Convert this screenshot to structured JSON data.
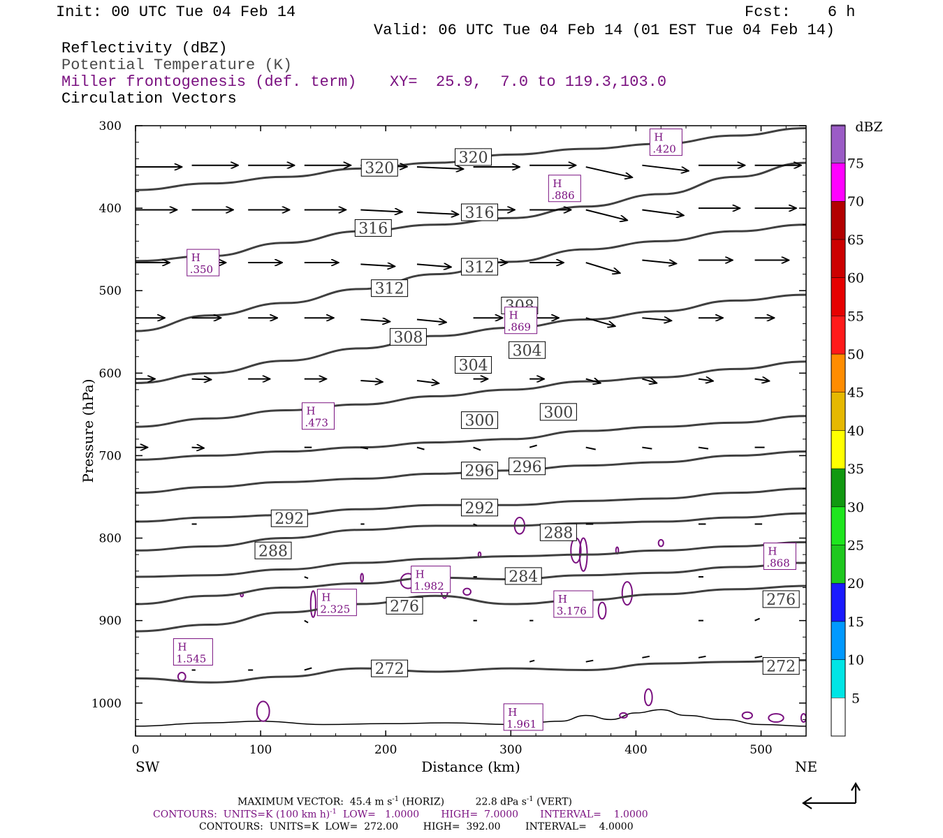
{
  "header": {
    "init": "Init: 00 UTC Tue 04 Feb 14",
    "fcst": "Fcst:    6 h",
    "valid": "Valid: 06 UTC Tue 04 Feb 14 (01 EST Tue 04 Feb 14)",
    "fields": [
      {
        "label": "Reflectivity (dBZ)",
        "color": "#000000"
      },
      {
        "label": "Potential Temperature (K)",
        "color": "#4a4a4a"
      },
      {
        "label": "Miller frontogenesis (def. term)",
        "color": "#7a1180"
      },
      {
        "label": "Circulation Vectors",
        "color": "#000000"
      }
    ],
    "xy": "XY=  25.9,  7.0 to 119.3,103.0"
  },
  "chart_data": {
    "type": "line",
    "xlabel": "Distance (km)",
    "ylabel": "Pressure (hPa)",
    "xlim": [
      0,
      536
    ],
    "ylim": [
      1040,
      300
    ],
    "x_ticks": [
      0,
      100,
      200,
      300,
      400,
      500
    ],
    "y_ticks": [
      300,
      400,
      500,
      600,
      700,
      800,
      900,
      1000
    ],
    "end_labels": {
      "left": "SW",
      "right": "NE"
    },
    "theta_series": [
      {
        "name": "272",
        "x": [
          0,
          60,
          120,
          180,
          240,
          300,
          360,
          420,
          480,
          536
        ],
        "values": [
          970,
          975,
          968,
          958,
          962,
          958,
          960,
          952,
          950,
          948
        ]
      },
      {
        "name": "276",
        "x": [
          0,
          60,
          120,
          180,
          240,
          300,
          360,
          420,
          480,
          536
        ],
        "values": [
          913,
          905,
          890,
          880,
          870,
          880,
          875,
          868,
          862,
          858
        ]
      },
      {
        "name": "280",
        "x": [
          0,
          60,
          120,
          180,
          240,
          300,
          360,
          420,
          480,
          536
        ],
        "values": [
          880,
          870,
          860,
          855,
          848,
          850,
          845,
          842,
          835,
          830
        ]
      },
      {
        "name": "284",
        "x": [
          0,
          60,
          120,
          180,
          240,
          300,
          360,
          420,
          480,
          536
        ],
        "values": [
          847,
          845,
          838,
          830,
          825,
          822,
          820,
          815,
          810,
          805
        ]
      },
      {
        "name": "288",
        "x": [
          0,
          60,
          120,
          180,
          240,
          300,
          360,
          420,
          480,
          536
        ],
        "values": [
          815,
          810,
          800,
          790,
          785,
          785,
          782,
          780,
          775,
          770
        ]
      },
      {
        "name": "292",
        "x": [
          0,
          60,
          120,
          180,
          240,
          300,
          360,
          420,
          480,
          536
        ],
        "values": [
          780,
          775,
          772,
          765,
          760,
          760,
          755,
          752,
          745,
          740
        ]
      },
      {
        "name": "296",
        "x": [
          0,
          60,
          120,
          180,
          240,
          300,
          360,
          420,
          480,
          536
        ],
        "values": [
          745,
          738,
          732,
          728,
          722,
          718,
          712,
          708,
          700,
          695
        ]
      },
      {
        "name": "300",
        "x": [
          0,
          60,
          120,
          180,
          240,
          300,
          360,
          420,
          480,
          536
        ],
        "values": [
          705,
          700,
          695,
          690,
          684,
          680,
          670,
          665,
          660,
          652
        ]
      },
      {
        "name": "304",
        "x": [
          0,
          60,
          120,
          180,
          240,
          300,
          360,
          420,
          480,
          536
        ],
        "values": [
          665,
          655,
          645,
          638,
          628,
          620,
          610,
          605,
          595,
          586
        ]
      },
      {
        "name": "308",
        "x": [
          0,
          60,
          120,
          180,
          240,
          300,
          360,
          420,
          480,
          536
        ],
        "values": [
          612,
          600,
          585,
          570,
          555,
          545,
          535,
          525,
          512,
          505
        ]
      },
      {
        "name": "312",
        "x": [
          0,
          60,
          120,
          180,
          240,
          300,
          360,
          420,
          480,
          536
        ],
        "values": [
          549,
          530,
          515,
          498,
          480,
          465,
          450,
          440,
          428,
          420
        ]
      },
      {
        "name": "316",
        "x": [
          0,
          60,
          120,
          180,
          240,
          300,
          360,
          420,
          480,
          536
        ],
        "values": [
          464,
          458,
          442,
          428,
          420,
          412,
          398,
          383,
          362,
          345
        ]
      },
      {
        "name": "320",
        "x": [
          0,
          60,
          120,
          180,
          240,
          300,
          360,
          420,
          480,
          536
        ],
        "values": [
          378,
          370,
          362,
          352,
          345,
          335,
          328,
          322,
          312,
          303
        ]
      }
    ],
    "theta_labels": [
      {
        "text": "320",
        "x": 195,
        "p": 351
      },
      {
        "text": "320",
        "x": 270,
        "p": 338
      },
      {
        "text": "316",
        "x": 190,
        "p": 424
      },
      {
        "text": "316",
        "x": 275,
        "p": 405
      },
      {
        "text": "312",
        "x": 203,
        "p": 497
      },
      {
        "text": "312",
        "x": 275,
        "p": 471
      },
      {
        "text": "308",
        "x": 218,
        "p": 556
      },
      {
        "text": "308",
        "x": 307,
        "p": 518
      },
      {
        "text": "304",
        "x": 270,
        "p": 590
      },
      {
        "text": "304",
        "x": 313,
        "p": 572
      },
      {
        "text": "300",
        "x": 275,
        "p": 657
      },
      {
        "text": "300",
        "x": 338,
        "p": 647
      },
      {
        "text": "296",
        "x": 275,
        "p": 718
      },
      {
        "text": "296",
        "x": 313,
        "p": 713
      },
      {
        "text": "292",
        "x": 123,
        "p": 776
      },
      {
        "text": "292",
        "x": 275,
        "p": 763
      },
      {
        "text": "288",
        "x": 110,
        "p": 815
      },
      {
        "text": "288",
        "x": 338,
        "p": 793
      },
      {
        "text": "284",
        "x": 310,
        "p": 846
      },
      {
        "text": "276",
        "x": 215,
        "p": 882
      },
      {
        "text": "276",
        "x": 516,
        "p": 874
      },
      {
        "text": "272",
        "x": 203,
        "p": 958
      },
      {
        "text": "272",
        "x": 516,
        "p": 955
      }
    ],
    "frontogenesis_highs": [
      {
        "value": ".420",
        "x": 424,
        "p": 320
      },
      {
        "value": ".886",
        "x": 343,
        "p": 376
      },
      {
        "value": ".350",
        "x": 54,
        "p": 466
      },
      {
        "value": ".869",
        "x": 308,
        "p": 536
      },
      {
        "value": ".473",
        "x": 146,
        "p": 652
      },
      {
        "value": ".868",
        "x": 515,
        "p": 822
      },
      {
        "value": "1.982",
        "x": 236,
        "p": 850
      },
      {
        "value": "2.325",
        "x": 161,
        "p": 878
      },
      {
        "value": "3.176",
        "x": 350,
        "p": 880
      },
      {
        "value": "1.545",
        "x": 46,
        "p": 938
      },
      {
        "value": "1.961",
        "x": 310,
        "p": 1017
      }
    ],
    "vectors": [
      {
        "x": 0,
        "p": 350,
        "u": 38,
        "w": 0
      },
      {
        "x": 45,
        "p": 348,
        "u": 38,
        "w": 0
      },
      {
        "x": 90,
        "p": 348,
        "u": 38,
        "w": 0
      },
      {
        "x": 135,
        "p": 348,
        "u": 38,
        "w": 0
      },
      {
        "x": 180,
        "p": 348,
        "u": 38,
        "w": -2
      },
      {
        "x": 225,
        "p": 350,
        "u": 38,
        "w": -3
      },
      {
        "x": 270,
        "p": 350,
        "u": 38,
        "w": 0
      },
      {
        "x": 315,
        "p": 348,
        "u": 38,
        "w": 0
      },
      {
        "x": 360,
        "p": 350,
        "u": 38,
        "w": -15
      },
      {
        "x": 405,
        "p": 348,
        "u": 38,
        "w": -8
      },
      {
        "x": 450,
        "p": 348,
        "u": 38,
        "w": 0
      },
      {
        "x": 495,
        "p": 348,
        "u": 38,
        "w": 0
      },
      {
        "x": 0,
        "p": 402,
        "u": 34,
        "w": 0
      },
      {
        "x": 45,
        "p": 402,
        "u": 34,
        "w": 0
      },
      {
        "x": 90,
        "p": 402,
        "u": 34,
        "w": 0
      },
      {
        "x": 135,
        "p": 402,
        "u": 34,
        "w": 0
      },
      {
        "x": 180,
        "p": 402,
        "u": 34,
        "w": -3
      },
      {
        "x": 225,
        "p": 405,
        "u": 34,
        "w": -3
      },
      {
        "x": 270,
        "p": 402,
        "u": 34,
        "w": 0
      },
      {
        "x": 315,
        "p": 402,
        "u": 34,
        "w": 0
      },
      {
        "x": 360,
        "p": 402,
        "u": 34,
        "w": -15
      },
      {
        "x": 405,
        "p": 402,
        "u": 34,
        "w": -8
      },
      {
        "x": 450,
        "p": 400,
        "u": 34,
        "w": 0
      },
      {
        "x": 495,
        "p": 400,
        "u": 34,
        "w": 0
      },
      {
        "x": 0,
        "p": 466,
        "u": 28,
        "w": 0
      },
      {
        "x": 45,
        "p": 466,
        "u": 28,
        "w": 0
      },
      {
        "x": 90,
        "p": 466,
        "u": 28,
        "w": 0
      },
      {
        "x": 135,
        "p": 466,
        "u": 28,
        "w": 0
      },
      {
        "x": 180,
        "p": 468,
        "u": 28,
        "w": -3
      },
      {
        "x": 225,
        "p": 468,
        "u": 28,
        "w": -4
      },
      {
        "x": 270,
        "p": 466,
        "u": 28,
        "w": 0
      },
      {
        "x": 315,
        "p": 466,
        "u": 28,
        "w": 0
      },
      {
        "x": 360,
        "p": 466,
        "u": 28,
        "w": -15
      },
      {
        "x": 405,
        "p": 463,
        "u": 28,
        "w": -5
      },
      {
        "x": 450,
        "p": 463,
        "u": 28,
        "w": 0
      },
      {
        "x": 495,
        "p": 463,
        "u": 28,
        "w": 0
      },
      {
        "x": 0,
        "p": 533,
        "u": 24,
        "w": 0
      },
      {
        "x": 45,
        "p": 533,
        "u": 24,
        "w": 0
      },
      {
        "x": 90,
        "p": 533,
        "u": 24,
        "w": 0
      },
      {
        "x": 135,
        "p": 533,
        "u": 24,
        "w": 0
      },
      {
        "x": 180,
        "p": 535,
        "u": 24,
        "w": -3
      },
      {
        "x": 225,
        "p": 535,
        "u": 24,
        "w": -4
      },
      {
        "x": 270,
        "p": 533,
        "u": 24,
        "w": 0
      },
      {
        "x": 315,
        "p": 533,
        "u": 24,
        "w": 0
      },
      {
        "x": 360,
        "p": 533,
        "u": 24,
        "w": -12
      },
      {
        "x": 405,
        "p": 533,
        "u": 24,
        "w": -4
      },
      {
        "x": 450,
        "p": 533,
        "u": 20,
        "w": 0
      },
      {
        "x": 495,
        "p": 533,
        "u": 16,
        "w": 0
      },
      {
        "x": 0,
        "p": 607,
        "u": 16,
        "w": 0
      },
      {
        "x": 45,
        "p": 607,
        "u": 16,
        "w": -1
      },
      {
        "x": 90,
        "p": 607,
        "u": 18,
        "w": 0
      },
      {
        "x": 135,
        "p": 607,
        "u": 18,
        "w": 0
      },
      {
        "x": 180,
        "p": 609,
        "u": 18,
        "w": -2
      },
      {
        "x": 225,
        "p": 609,
        "u": 18,
        "w": -4
      },
      {
        "x": 270,
        "p": 607,
        "u": 12,
        "w": 0
      },
      {
        "x": 315,
        "p": 607,
        "u": 12,
        "w": 0
      },
      {
        "x": 360,
        "p": 607,
        "u": 12,
        "w": -6
      },
      {
        "x": 405,
        "p": 607,
        "u": 12,
        "w": -6
      },
      {
        "x": 450,
        "p": 607,
        "u": 12,
        "w": -3
      },
      {
        "x": 495,
        "p": 607,
        "u": 12,
        "w": -3
      },
      {
        "x": 0,
        "p": 690,
        "u": 10,
        "w": 0
      },
      {
        "x": 45,
        "p": 690,
        "u": 10,
        "w": -1
      },
      {
        "x": 135,
        "p": 690,
        "u": 6,
        "w": 0
      },
      {
        "x": 180,
        "p": 690,
        "u": 6,
        "w": -2
      },
      {
        "x": 225,
        "p": 690,
        "u": 6,
        "w": -3
      },
      {
        "x": 270,
        "p": 690,
        "u": 6,
        "w": -4
      },
      {
        "x": 315,
        "p": 690,
        "u": 6,
        "w": 3
      },
      {
        "x": 360,
        "p": 690,
        "u": 8,
        "w": -3
      },
      {
        "x": 405,
        "p": 690,
        "u": 8,
        "w": -2
      },
      {
        "x": 450,
        "p": 690,
        "u": 8,
        "w": -2
      },
      {
        "x": 495,
        "p": 690,
        "u": 8,
        "w": 0
      },
      {
        "x": 45,
        "p": 783,
        "u": 4,
        "w": 0
      },
      {
        "x": 180,
        "p": 783,
        "u": 3,
        "w": 0
      },
      {
        "x": 270,
        "p": 783,
        "u": 3,
        "w": -2
      },
      {
        "x": 360,
        "p": 783,
        "u": 6,
        "w": 0
      },
      {
        "x": 450,
        "p": 783,
        "u": 6,
        "w": 0
      },
      {
        "x": 495,
        "p": 783,
        "u": 6,
        "w": 0
      },
      {
        "x": 135,
        "p": 847,
        "u": 3,
        "w": -2
      },
      {
        "x": 270,
        "p": 847,
        "u": 3,
        "w": 0
      },
      {
        "x": 450,
        "p": 847,
        "u": 4,
        "w": 0
      },
      {
        "x": 135,
        "p": 900,
        "u": 3,
        "w": -3
      },
      {
        "x": 270,
        "p": 900,
        "u": 3,
        "w": 0
      },
      {
        "x": 315,
        "p": 900,
        "u": 3,
        "w": 0
      },
      {
        "x": 450,
        "p": 900,
        "u": 4,
        "w": 0
      },
      {
        "x": 495,
        "p": 900,
        "u": 4,
        "w": 3
      },
      {
        "x": 45,
        "p": 960,
        "u": 3,
        "w": 0
      },
      {
        "x": 90,
        "p": 960,
        "u": 4,
        "w": 0
      },
      {
        "x": 135,
        "p": 960,
        "u": 6,
        "w": 3
      },
      {
        "x": 315,
        "p": 950,
        "u": 4,
        "w": 2
      },
      {
        "x": 360,
        "p": 950,
        "u": 6,
        "w": 2
      },
      {
        "x": 405,
        "p": 945,
        "u": 6,
        "w": 2
      },
      {
        "x": 450,
        "p": 945,
        "u": 6,
        "w": 2
      },
      {
        "x": 495,
        "p": 945,
        "u": 6,
        "w": 2
      }
    ],
    "contour_blobs": [
      {
        "x": 307,
        "p": 785,
        "rx": 4,
        "rp": 10
      },
      {
        "x": 352,
        "p": 815,
        "rx": 4,
        "rp": 15
      },
      {
        "x": 358,
        "p": 820,
        "rx": 3,
        "rp": 20
      },
      {
        "x": 420,
        "p": 806,
        "rx": 2,
        "rp": 4
      },
      {
        "x": 385,
        "p": 815,
        "rx": 1,
        "rp": 4
      },
      {
        "x": 275,
        "p": 820,
        "rx": 1,
        "rp": 3
      },
      {
        "x": 218,
        "p": 852,
        "rx": 6,
        "rp": 9
      },
      {
        "x": 247,
        "p": 858,
        "rx": 3,
        "rp": 15
      },
      {
        "x": 265,
        "p": 865,
        "rx": 3,
        "rp": 4
      },
      {
        "x": 181,
        "p": 848,
        "rx": 1,
        "rp": 5
      },
      {
        "x": 142,
        "p": 880,
        "rx": 2,
        "rp": 16
      },
      {
        "x": 393,
        "p": 867,
        "rx": 4,
        "rp": 14
      },
      {
        "x": 373,
        "p": 888,
        "rx": 3,
        "rp": 10
      },
      {
        "x": 85,
        "p": 869,
        "rx": 1,
        "rp": 2
      },
      {
        "x": 37,
        "p": 968,
        "rx": 3,
        "rp": 5
      },
      {
        "x": 102,
        "p": 1010,
        "rx": 5,
        "rp": 12
      },
      {
        "x": 410,
        "p": 993,
        "rx": 3,
        "rp": 10
      },
      {
        "x": 489,
        "p": 1015,
        "rx": 4,
        "rp": 4
      },
      {
        "x": 512,
        "p": 1018,
        "rx": 6,
        "rp": 5
      },
      {
        "x": 534,
        "p": 1018,
        "rx": 2,
        "rp": 5
      },
      {
        "x": 390,
        "p": 1015,
        "rx": 3,
        "rp": 3
      }
    ],
    "terrain": {
      "x": [
        0,
        60,
        100,
        150,
        200,
        250,
        300,
        340,
        360,
        380,
        400,
        420,
        440,
        470,
        500,
        536
      ],
      "values": [
        1028,
        1024,
        1022,
        1026,
        1025,
        1024,
        1026,
        1022,
        1015,
        1020,
        1012,
        1008,
        1015,
        1020,
        1026,
        1028
      ]
    }
  },
  "colorbar": {
    "title": "dBZ",
    "labels": [
      "5",
      "10",
      "15",
      "20",
      "25",
      "30",
      "35",
      "40",
      "45",
      "50",
      "55",
      "60",
      "65",
      "70",
      "75"
    ],
    "colors": [
      "#00e5e5",
      "#0099ff",
      "#1a1aff",
      "#1ec81e",
      "#1ee61e",
      "#119911",
      "#ffff00",
      "#e6b800",
      "#ff8c00",
      "#ff1a1a",
      "#e60000",
      "#cc0000",
      "#b30000",
      "#ff00ff",
      "#9b5cc6"
    ]
  },
  "footer": {
    "max_vector": "MAXIMUM VECTOR:  45.4 m s",
    "max_vector_horiz": "(HORIZ)",
    "max_vector_vert": "22.8 dPa s",
    "max_vector_vert_unit": "(VERT)",
    "sup": "-1",
    "contours1": "CONTOURS:  UNITS=K (100 km h)",
    "contours1_rest": "LOW=   1.0000       HIGH=  7.0000       INTERVAL=    1.0000",
    "contours2": "CONTOURS:  UNITS=K  LOW=  272.00        HIGH=  392.00        INTERVAL=    4.0000"
  }
}
